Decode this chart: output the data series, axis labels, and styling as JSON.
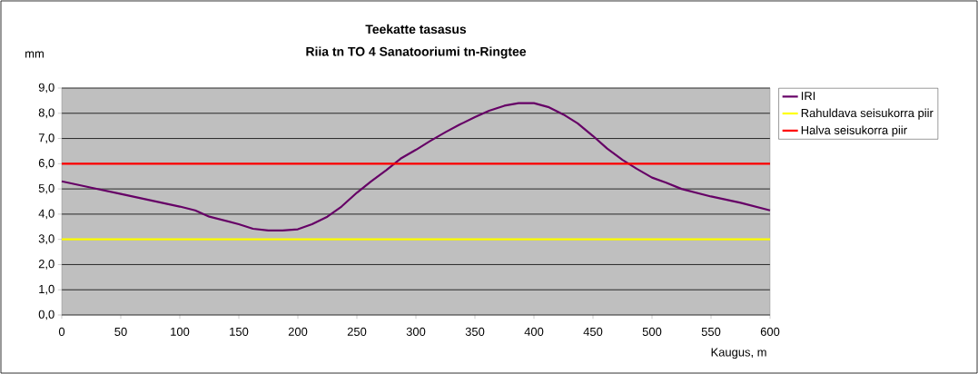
{
  "chart_data": {
    "type": "line",
    "title": "Teekatte tasasus",
    "subtitle": "Riia tn TO 4 Sanatooriumi tn-Ringtee",
    "xlabel": "Kaugus, m",
    "ylabel": "mm",
    "series": [
      {
        "name": "IRI",
        "color": "#660066",
        "x": [
          0,
          25,
          50,
          75,
          100,
          113,
          125,
          150,
          162,
          175,
          187,
          200,
          212,
          225,
          237,
          250,
          262,
          275,
          287,
          300,
          312,
          325,
          337,
          350,
          362,
          375,
          387,
          400,
          412,
          425,
          437,
          450,
          462,
          475,
          487,
          500,
          512,
          525,
          550,
          575,
          600
        ],
        "values": [
          5.3,
          5.05,
          4.8,
          4.55,
          4.3,
          4.15,
          3.9,
          3.6,
          3.42,
          3.35,
          3.35,
          3.4,
          3.6,
          3.9,
          4.3,
          4.85,
          5.3,
          5.75,
          6.2,
          6.55,
          6.9,
          7.25,
          7.55,
          7.85,
          8.1,
          8.3,
          8.4,
          8.4,
          8.25,
          7.95,
          7.6,
          7.1,
          6.6,
          6.15,
          5.8,
          5.45,
          5.25,
          5.0,
          4.7,
          4.45,
          4.15
        ]
      },
      {
        "name": "Rahuldava seisukorra piir",
        "color": "#ffff00",
        "x": [
          0,
          600
        ],
        "values": [
          3,
          3
        ]
      },
      {
        "name": "Halva seisukorra piir",
        "color": "#ff0000",
        "x": [
          0,
          600
        ],
        "values": [
          6,
          6
        ]
      }
    ],
    "xlim": [
      0,
      600
    ],
    "xticks": [
      0,
      50,
      100,
      150,
      200,
      250,
      300,
      350,
      400,
      450,
      500,
      550,
      600
    ],
    "ylim": [
      0,
      9
    ],
    "yticks": [
      {
        "value": 0,
        "label": "0,0"
      },
      {
        "value": 1,
        "label": "1,0"
      },
      {
        "value": 2,
        "label": "2,0"
      },
      {
        "value": 3,
        "label": "3,0"
      },
      {
        "value": 4,
        "label": "4,0"
      },
      {
        "value": 5,
        "label": "5,0"
      },
      {
        "value": 6,
        "label": "6,0"
      },
      {
        "value": 7,
        "label": "7,0"
      },
      {
        "value": 8,
        "label": "8,0"
      },
      {
        "value": 9,
        "label": "9,0"
      }
    ],
    "grid": "y",
    "legend": "right",
    "line_style": "solid"
  }
}
